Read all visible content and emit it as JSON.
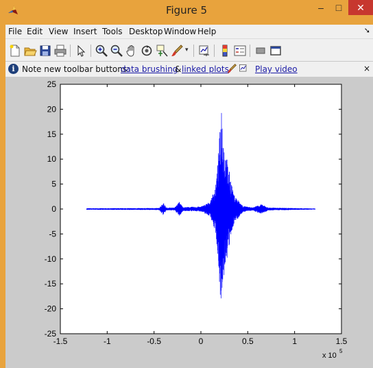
{
  "window": {
    "title": "Figure 5",
    "minimize_label": "–",
    "maximize_label": "□",
    "close_label": "✕"
  },
  "menubar": {
    "items": [
      "File",
      "Edit",
      "View",
      "Insert",
      "Tools",
      "Desktop",
      "Window",
      "Help"
    ],
    "overflow_icon": "arrow-icon"
  },
  "toolbar": {
    "icons": [
      "new-figure-icon",
      "open-file-icon",
      "save-icon",
      "print-icon",
      "pointer-icon",
      "zoom-in-icon",
      "zoom-out-icon",
      "pan-icon",
      "rotate-3d-icon",
      "data-cursor-icon",
      "brush-icon",
      "link-plot-icon",
      "colorbar-icon",
      "legend-icon",
      "hide-plot-tools-icon",
      "show-plot-tools-icon"
    ]
  },
  "infobar": {
    "prefix": "Note new toolbar buttons:",
    "link1": "data brushing",
    "amp": "&",
    "link2": "linked plots",
    "link3": "Play video",
    "close_label": "×",
    "info_glyph": "i"
  },
  "chart_data": {
    "type": "line",
    "series_color": "#0000ff",
    "xlim": [
      -1.5,
      1.5
    ],
    "ylim": [
      -25,
      25
    ],
    "x_ticks": [
      -1.5,
      -1,
      -0.5,
      0,
      0.5,
      1,
      1.5
    ],
    "x_tick_labels": [
      "-1.5",
      "-1",
      "-0.5",
      "0",
      "0.5",
      "1",
      "1.5"
    ],
    "y_ticks": [
      -25,
      -20,
      -15,
      -10,
      -5,
      0,
      5,
      10,
      15,
      20,
      25
    ],
    "y_tick_labels": [
      "-25",
      "-20",
      "-15",
      "-10",
      "-5",
      "0",
      "5",
      "10",
      "15",
      "20",
      "25"
    ],
    "x_multiplier_base": "x 10",
    "x_multiplier_exp": "5",
    "x_range": [
      -1.22,
      1.22
    ],
    "signal_envelope": [
      {
        "x": -1.22,
        "amp": 0.15
      },
      {
        "x": -0.45,
        "amp": 0.2
      },
      {
        "x": -0.4,
        "amp": 1.3
      },
      {
        "x": -0.37,
        "amp": 0.3
      },
      {
        "x": -0.28,
        "amp": 0.3
      },
      {
        "x": -0.23,
        "amp": 1.5
      },
      {
        "x": -0.19,
        "amp": 0.4
      },
      {
        "x": 0.0,
        "amp": 0.5
      },
      {
        "x": 0.1,
        "amp": 1.5
      },
      {
        "x": 0.16,
        "amp": 5
      },
      {
        "x": 0.19,
        "amp": 12
      },
      {
        "x": 0.22,
        "amp": 22
      },
      {
        "x": 0.25,
        "amp": 13
      },
      {
        "x": 0.29,
        "amp": 9
      },
      {
        "x": 0.35,
        "amp": 3
      },
      {
        "x": 0.45,
        "amp": 0.6
      },
      {
        "x": 0.55,
        "amp": 0.3
      },
      {
        "x": 0.64,
        "amp": 1.0
      },
      {
        "x": 0.72,
        "amp": 0.3
      },
      {
        "x": 1.22,
        "amp": 0.1
      }
    ]
  }
}
